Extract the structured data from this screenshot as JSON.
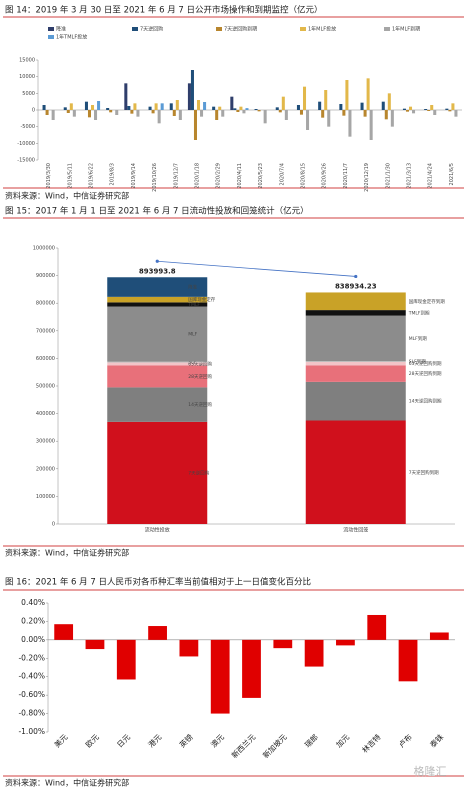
{
  "chart_data": [
    {
      "type": "bar",
      "title": "图 14：2019 年 3 月 30 日至 2021 年 6 月 7 日公开市场操作和到期监控（亿元）",
      "source": "资料来源：Wind，中信证券研究部",
      "categories": [
        "2019/3/30",
        "2019/5/11",
        "2019/6/22",
        "2019/8/3",
        "2019/9/14",
        "2019/10/26",
        "2019/12/7",
        "2020/1/18",
        "2020/2/29",
        "2020/4/11",
        "2020/5/23",
        "2020/7/4",
        "2020/8/15",
        "2020/9/26",
        "2020/11/7",
        "2020/12/19",
        "2021/1/30",
        "2021/3/13",
        "2021/4/24",
        "2021/6/5"
      ],
      "series": [
        {
          "name": "降准",
          "color": "#2f3e6b",
          "values": [
            0,
            0,
            0,
            0,
            8000,
            0,
            0,
            8000,
            0,
            4000,
            0,
            0,
            0,
            0,
            0,
            0,
            0,
            0,
            0,
            0
          ]
        },
        {
          "name": "7天逆回购",
          "color": "#1f4e79",
          "values": [
            1500,
            800,
            2500,
            600,
            1200,
            1000,
            2000,
            12000,
            1000,
            500,
            300,
            800,
            1500,
            2500,
            1800,
            2200,
            2500,
            400,
            300,
            400
          ]
        },
        {
          "name": "7天逆回购到期",
          "color": "#b8862e",
          "values": [
            -1500,
            -900,
            -2200,
            -700,
            -1100,
            -1000,
            -1800,
            -9000,
            -3000,
            -600,
            -400,
            -700,
            -1400,
            -2300,
            -1700,
            -2000,
            -2800,
            -500,
            -300,
            -400
          ]
        },
        {
          "name": "1年MLF投放",
          "color": "#e2b84a",
          "values": [
            0,
            2000,
            1500,
            0,
            2000,
            2000,
            3000,
            3000,
            1000,
            1000,
            0,
            4000,
            7000,
            6000,
            9000,
            9500,
            5000,
            1000,
            1500,
            2000
          ]
        },
        {
          "name": "1年MLF到期",
          "color": "#a6a6a6",
          "values": [
            -3000,
            -2000,
            -3000,
            -1500,
            -2000,
            -4000,
            -3000,
            -2000,
            -2000,
            -1000,
            -4000,
            -3000,
            -6000,
            -5000,
            -8000,
            -9000,
            -5000,
            -1000,
            -1500,
            -2000
          ]
        },
        {
          "name": "1年TMLF投放",
          "color": "#5b9bd5",
          "values": [
            0,
            0,
            2700,
            0,
            0,
            2000,
            0,
            2400,
            0,
            560,
            0,
            0,
            0,
            0,
            0,
            0,
            0,
            0,
            0,
            0
          ]
        }
      ],
      "ylim": [
        -15000,
        15000
      ],
      "yticks": [
        -15000,
        -10000,
        -5000,
        0,
        5000,
        10000,
        15000
      ]
    },
    {
      "type": "stacked_bar",
      "title": "图 15：2017 年 1 月 1 日至 2021 年 6 月 7 日流动性投放和回笼统计（亿元）",
      "source": "资料来源：Wind，中信证券研究部",
      "categories": [
        "流动性投放",
        "流动性回笼"
      ],
      "totals": [
        893993.8,
        838934.23
      ],
      "series": [
        {
          "labels": [
            "7天逆回购",
            "7天逆回购到期"
          ],
          "color": "#d0101c",
          "values": [
            370000,
            375000
          ]
        },
        {
          "labels": [
            "14天逆回购",
            "14天逆回购到期"
          ],
          "color": "#7f7f7f",
          "values": [
            125000,
            140000
          ]
        },
        {
          "labels": [
            "28天逆回购",
            "28天逆回购到期"
          ],
          "color": "#e8707a",
          "values": [
            80000,
            60000
          ]
        },
        {
          "labels": [
            "63天逆回购",
            "63天逆回购到期"
          ],
          "color": "#f2c4c8",
          "values": [
            10000,
            12000
          ]
        },
        {
          "labels": [
            "SLF",
            "SLF到期"
          ],
          "color": "#bfbfbf",
          "values": [
            3000,
            3000
          ]
        },
        {
          "labels": [
            "MLF",
            "MLF到期"
          ],
          "color": "#8c8c8c",
          "values": [
            200000,
            165000
          ]
        },
        {
          "labels": [
            "TMLF",
            "TMLF到期"
          ],
          "color": "#111111",
          "values": [
            15000,
            20000
          ]
        },
        {
          "labels": [
            "国库现金定存",
            "国库现金定存到期"
          ],
          "color": "#c9a227",
          "values": [
            20000,
            63934.23
          ]
        },
        {
          "labels": [
            "降准",
            null
          ],
          "color": "#1f4e79",
          "values": [
            70993.8,
            0
          ]
        }
      ],
      "ylim": [
        0,
        1000000
      ],
      "yticks": [
        0,
        100000,
        200000,
        300000,
        400000,
        500000,
        600000,
        700000,
        800000,
        900000,
        1000000
      ]
    },
    {
      "type": "bar",
      "title": "图 16：2021 年 6 月 7 日人民币对各币种汇率当前值相对于上一日值变化百分比",
      "source": "资料来源：Wind，中信证券研究部",
      "categories": [
        "美元",
        "欧元",
        "日元",
        "港元",
        "英镑",
        "澳元",
        "新西兰元",
        "新加坡元",
        "瑞郎",
        "加元",
        "林吉特",
        "卢布",
        "泰铢"
      ],
      "values": [
        0.17,
        -0.1,
        -0.43,
        0.15,
        -0.18,
        -0.8,
        -0.63,
        -0.09,
        -0.29,
        -0.06,
        0.27,
        -0.45,
        0.08
      ],
      "color": "#e00000",
      "ylim": [
        -1.0,
        0.4
      ],
      "yticks": [
        {
          "value": 0.4,
          "label": "0.40%"
        },
        {
          "value": 0.2,
          "label": "0.20%"
        },
        {
          "value": 0,
          "label": "0.00%"
        },
        {
          "value": -0.2,
          "label": "-0.20%"
        },
        {
          "value": -0.4,
          "label": "-0.40%"
        },
        {
          "value": -0.6,
          "label": "-0.60%"
        },
        {
          "value": -0.8,
          "label": "-0.80%"
        },
        {
          "value": -1.0,
          "label": "-1.00%"
        }
      ]
    }
  ],
  "watermark": "格隆汇"
}
